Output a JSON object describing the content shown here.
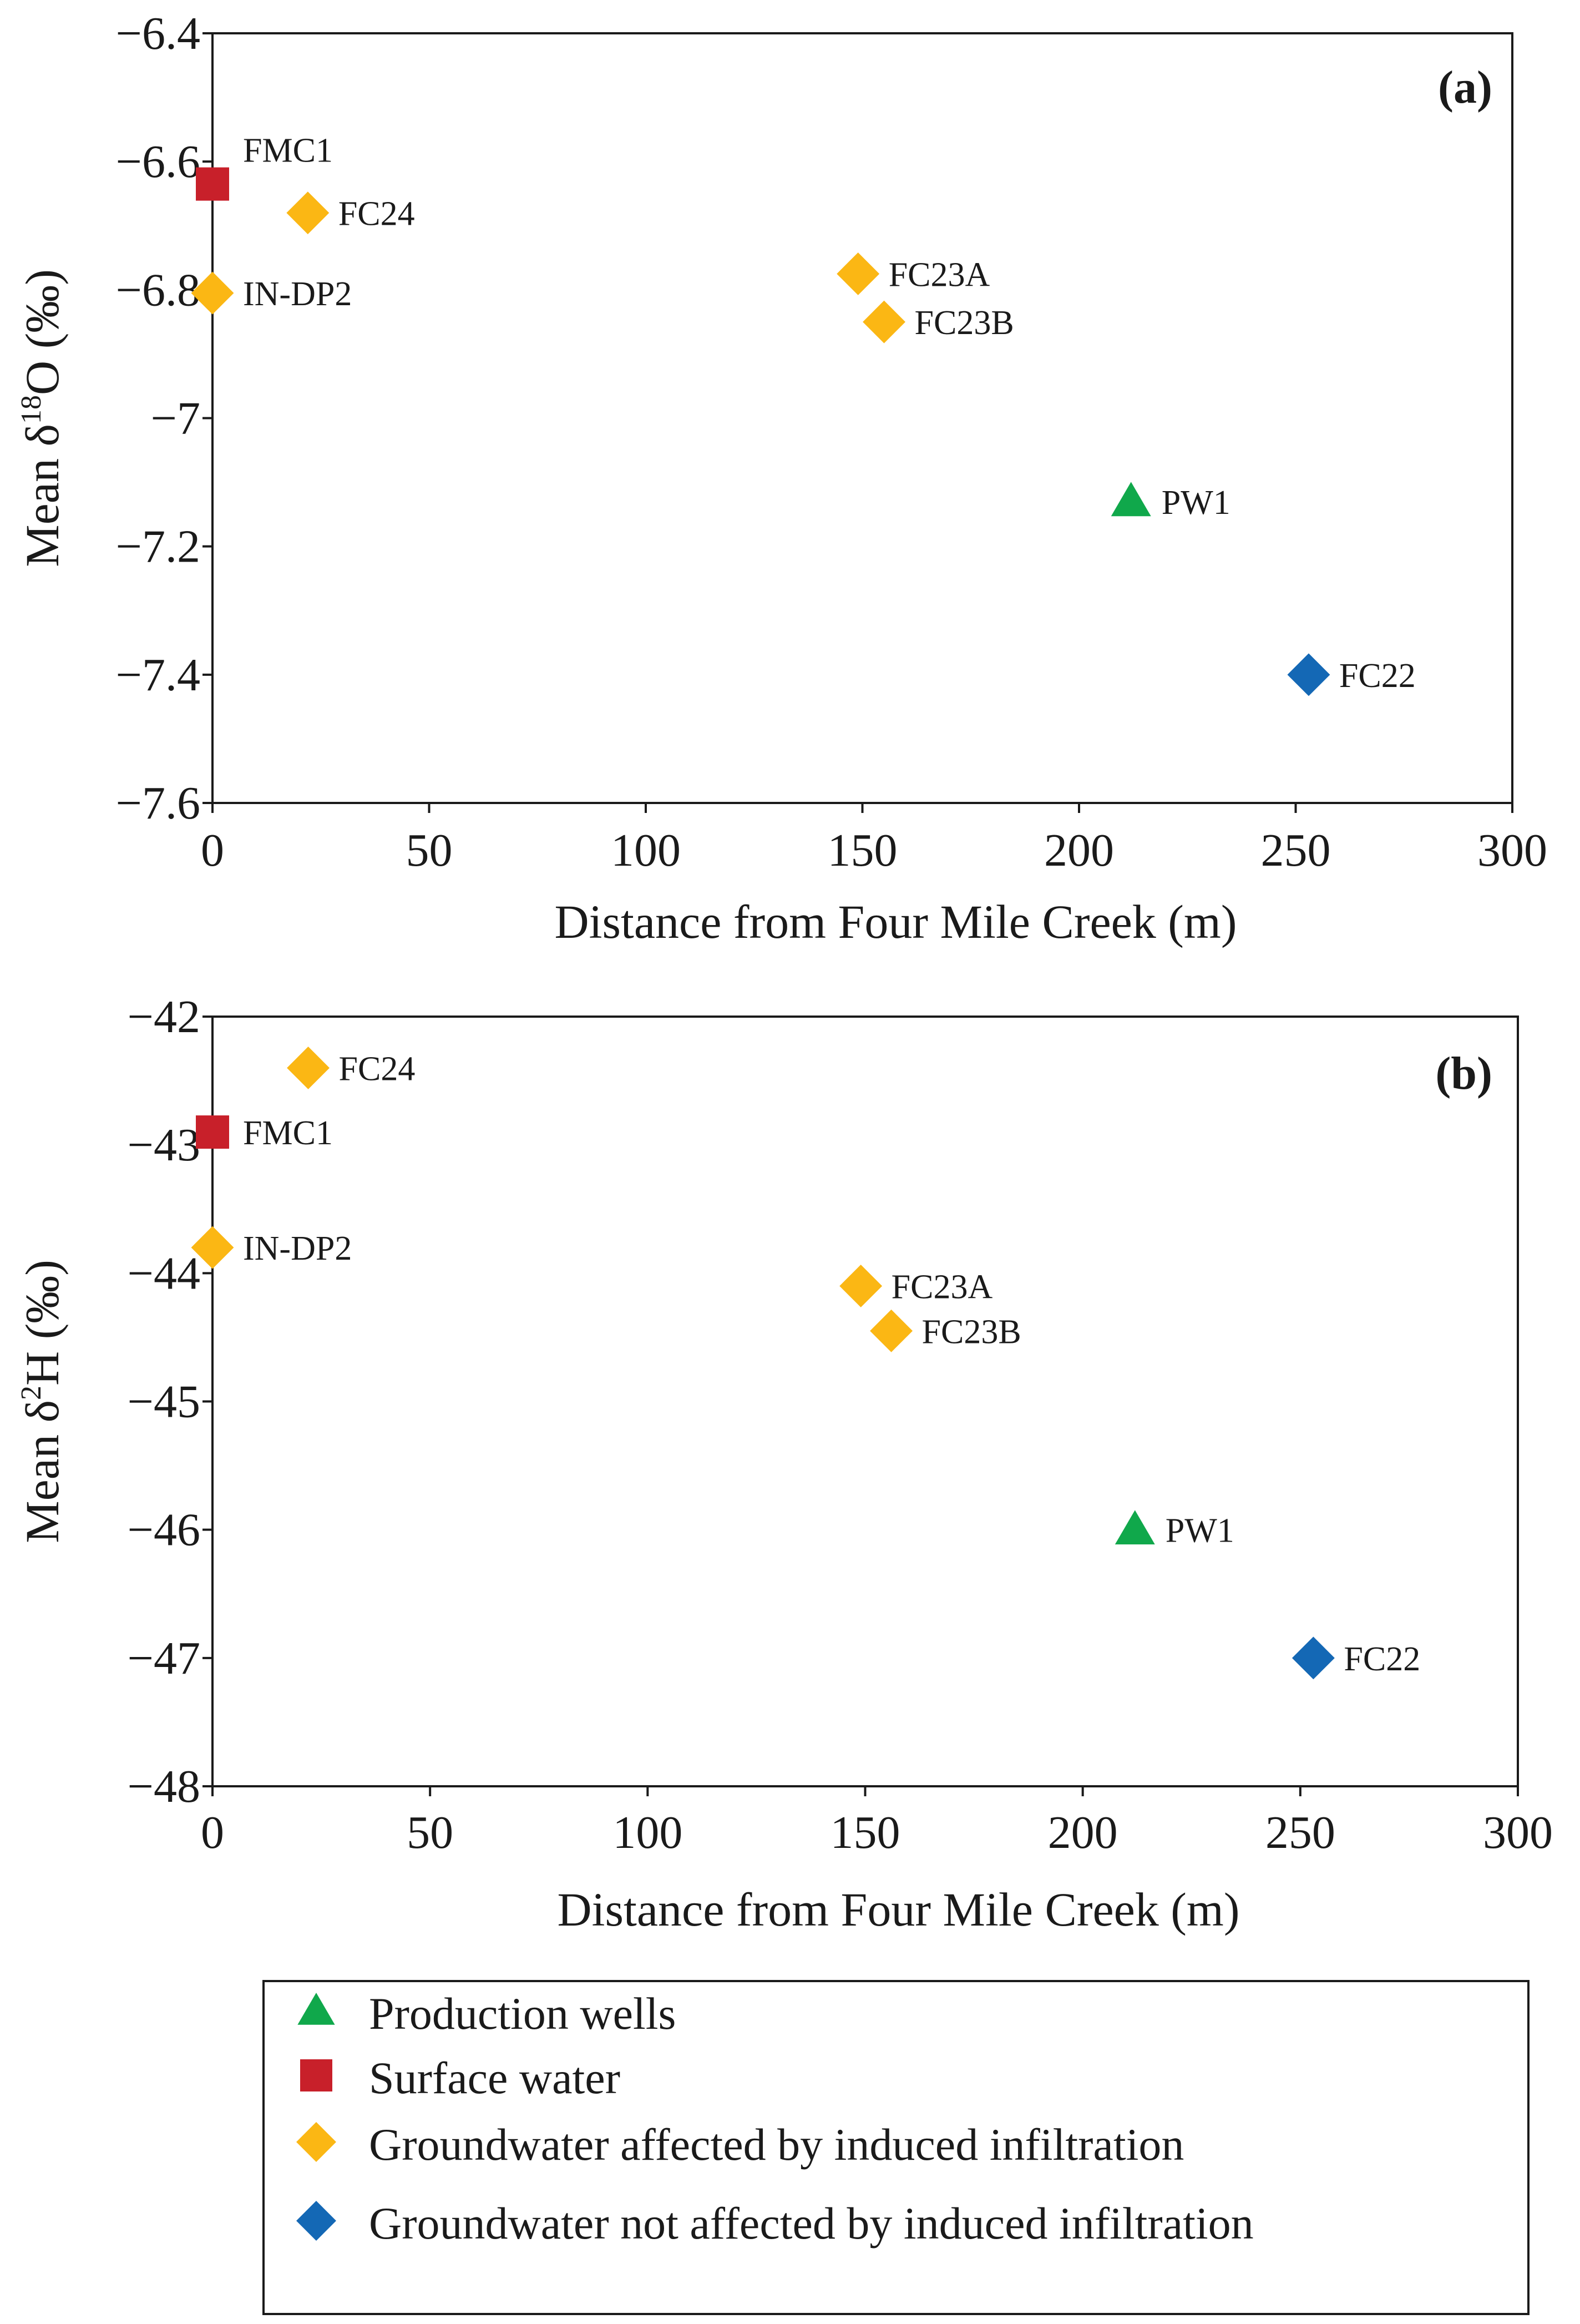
{
  "colors": {
    "production_wells": "#10a84b",
    "surface_water": "#c8202a",
    "gw_affected": "#fbb714",
    "gw_not_affected": "#1468b5",
    "axis": "#1a1a1a"
  },
  "chart_data": [
    {
      "type": "scatter",
      "panel_label": "(a)",
      "xlabel": "Distance from Four Mile Creek (m)",
      "ylabel_prefix": "Mean δ",
      "ylabel_superscript": "18",
      "ylabel_suffix": "O (‰)",
      "xlim": [
        0,
        300
      ],
      "ylim": [
        -7.6,
        -6.4
      ],
      "x_ticks": [
        0,
        50,
        100,
        150,
        200,
        250,
        300
      ],
      "x_tick_labels": [
        "0",
        "50",
        "100",
        "150",
        "200",
        "250",
        "300"
      ],
      "y_ticks": [
        -6.4,
        -6.6,
        -6.8,
        -7,
        -7.2,
        -7.4,
        -7.6
      ],
      "y_tick_labels": [
        "−6.4",
        "−6.6",
        "−6.8",
        "−7",
        "−7.2",
        "−7.4",
        "−7.6"
      ],
      "points": [
        {
          "label": "FMC1",
          "x": 0,
          "y": -6.635,
          "category": "surface_water",
          "label_pos": "upper-right"
        },
        {
          "label": "FC24",
          "x": 22,
          "y": -6.68,
          "category": "gw_affected",
          "label_pos": "right"
        },
        {
          "label": "IN-DP2",
          "x": 0,
          "y": -6.805,
          "category": "gw_affected",
          "label_pos": "right"
        },
        {
          "label": "FC23A",
          "x": 149,
          "y": -6.775,
          "category": "gw_affected",
          "label_pos": "right"
        },
        {
          "label": "FC23B",
          "x": 155,
          "y": -6.85,
          "category": "gw_affected",
          "label_pos": "right"
        },
        {
          "label": "PW1",
          "x": 212,
          "y": -7.13,
          "category": "production_wells",
          "label_pos": "right"
        },
        {
          "label": "FC22",
          "x": 253,
          "y": -7.4,
          "category": "gw_not_affected",
          "label_pos": "right"
        }
      ]
    },
    {
      "type": "scatter",
      "panel_label": "(b)",
      "xlabel": "Distance from Four Mile Creek (m)",
      "ylabel_prefix": "Mean δ",
      "ylabel_superscript": "2",
      "ylabel_suffix": "H (‰)",
      "xlim": [
        0,
        300
      ],
      "ylim": [
        -48,
        -42
      ],
      "x_ticks": [
        0,
        50,
        100,
        150,
        200,
        250,
        300
      ],
      "x_tick_labels": [
        "0",
        "50",
        "100",
        "150",
        "200",
        "250",
        "300"
      ],
      "y_ticks": [
        -42,
        -43,
        -44,
        -45,
        -46,
        -47,
        -48
      ],
      "y_tick_labels": [
        "−42",
        "−43",
        "−44",
        "−45",
        "−46",
        "−47",
        "−48"
      ],
      "points": [
        {
          "label": "FC24",
          "x": 22,
          "y": -42.4,
          "category": "gw_affected",
          "label_pos": "right"
        },
        {
          "label": "FMC1",
          "x": 0,
          "y": -42.9,
          "category": "surface_water",
          "label_pos": "right"
        },
        {
          "label": "IN-DP2",
          "x": 0,
          "y": -43.8,
          "category": "gw_affected",
          "label_pos": "right"
        },
        {
          "label": "FC23A",
          "x": 149,
          "y": -44.1,
          "category": "gw_affected",
          "label_pos": "right"
        },
        {
          "label": "FC23B",
          "x": 156,
          "y": -44.45,
          "category": "gw_affected",
          "label_pos": "right"
        },
        {
          "label": "PW1",
          "x": 212,
          "y": -46,
          "category": "production_wells",
          "label_pos": "right"
        },
        {
          "label": "FC22",
          "x": 253,
          "y": -47,
          "category": "gw_not_affected",
          "label_pos": "right"
        }
      ]
    }
  ],
  "legend": {
    "items": [
      {
        "label": "Production wells",
        "category": "production_wells",
        "marker": "triangle"
      },
      {
        "label": "Surface water",
        "category": "surface_water",
        "marker": "square"
      },
      {
        "label": "Groundwater affected by induced infiltration",
        "category": "gw_affected",
        "marker": "diamond"
      },
      {
        "label": "Groundwater not affected by induced infiltration",
        "category": "gw_not_affected",
        "marker": "diamond"
      }
    ]
  }
}
